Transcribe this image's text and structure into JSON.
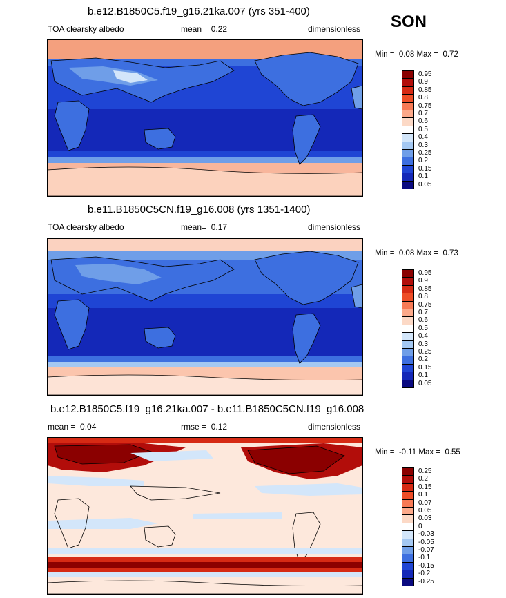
{
  "season": "SON",
  "panels": [
    {
      "title": "b.e12.B1850C5.f19_g16.21ka.007 (yrs 351-400)",
      "left_label": "TOA clearsky albedo",
      "mean_label": "mean=",
      "mean_value": "0.22",
      "units": "dimensionless",
      "min_label": "Min =",
      "min_value": "0.08",
      "max_label": "Max =",
      "max_value": "0.72",
      "colorbar": [
        "0.95",
        "0.9",
        "0.85",
        "0.8",
        "0.75",
        "0.7",
        "0.6",
        "0.5",
        "0.4",
        "0.3",
        "0.25",
        "0.2",
        "0.15",
        "0.1",
        "0.05"
      ]
    },
    {
      "title": "b.e11.B1850C5CN.f19_g16.008 (yrs 1351-1400)",
      "left_label": "TOA clearsky albedo",
      "mean_label": "mean=",
      "mean_value": "0.17",
      "units": "dimensionless",
      "min_label": "Min =",
      "min_value": "0.08",
      "max_label": "Max =",
      "max_value": "0.73",
      "colorbar": [
        "0.95",
        "0.9",
        "0.85",
        "0.8",
        "0.75",
        "0.7",
        "0.6",
        "0.5",
        "0.4",
        "0.3",
        "0.25",
        "0.2",
        "0.15",
        "0.1",
        "0.05"
      ]
    },
    {
      "title": "b.e12.B1850C5.f19_g16.21ka.007 - b.e11.B1850C5CN.f19_g16.008",
      "mean_label": "mean =",
      "mean_value": "0.04",
      "rmse_label": "rmse =",
      "rmse_value": "0.12",
      "units": "dimensionless",
      "min_label": "Min =",
      "min_value": "-0.11",
      "max_label": "Max =",
      "max_value": "0.55",
      "colorbar": [
        "0.25",
        "0.2",
        "0.15",
        "0.1",
        "0.07",
        "0.05",
        "0.03",
        "0",
        "-0.03",
        "-0.05",
        "-0.07",
        "-0.1",
        "-0.15",
        "-0.2",
        "-0.25"
      ]
    }
  ],
  "colors": {
    "abs_scale": [
      "#8b0000",
      "#b20d0a",
      "#d62a14",
      "#ee4d26",
      "#f77a55",
      "#fca98a",
      "#fcd9c6",
      "#ffffff",
      "#d3e6fa",
      "#a4c8f2",
      "#6f9ee8",
      "#3d6fe0",
      "#1f45d4",
      "#1428b8",
      "#0a0a80"
    ],
    "diff_scale": [
      "#8b0000",
      "#b20d0a",
      "#d62a14",
      "#ee4d26",
      "#f77a55",
      "#fca98a",
      "#fcd9c6",
      "#ffffff",
      "#d3e6fa",
      "#a4c8f2",
      "#6f9ee8",
      "#3d6fe0",
      "#1f45d4",
      "#1428b8",
      "#0a0a80"
    ]
  }
}
